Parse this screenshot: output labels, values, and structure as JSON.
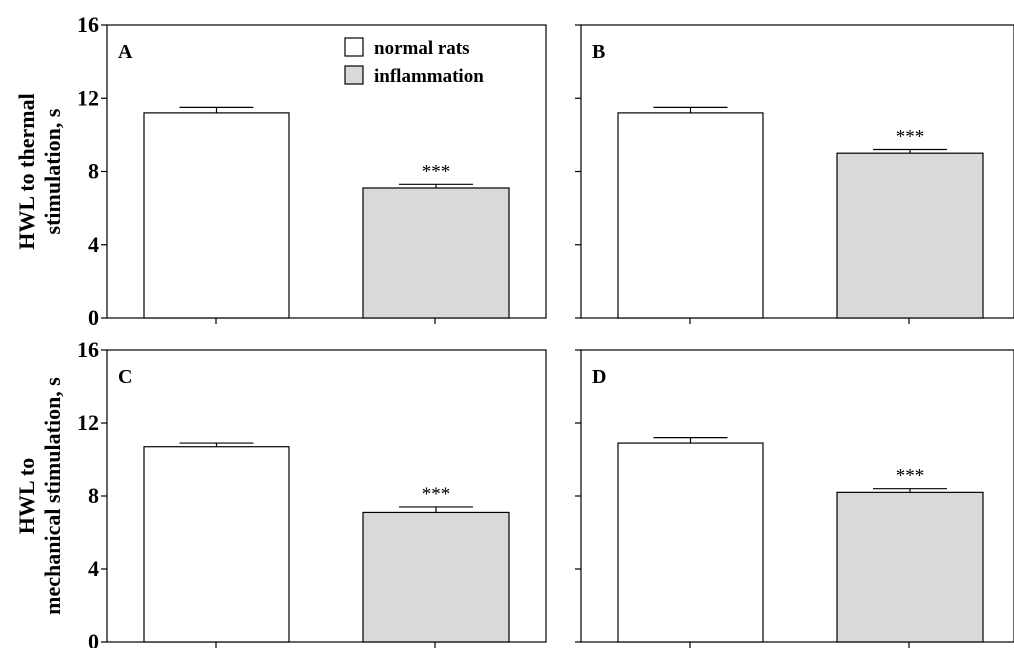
{
  "chart_data": [
    {
      "type": "bar",
      "panel": "A",
      "categories": [
        "normal rats",
        "inflammation"
      ],
      "values": [
        11.2,
        7.1
      ],
      "errors": [
        0.3,
        0.2
      ],
      "significance": [
        "",
        "***"
      ],
      "ylabel_lines": [
        "HWL to thermal",
        "stimulation, s"
      ],
      "ylim": [
        0,
        16
      ],
      "yticks": [
        "0",
        "4",
        "8",
        "12",
        "16"
      ]
    },
    {
      "type": "bar",
      "panel": "B",
      "categories": [
        "normal rats",
        "inflammation"
      ],
      "values": [
        11.2,
        9.0
      ],
      "errors": [
        0.3,
        0.2
      ],
      "significance": [
        "",
        "***"
      ],
      "ylim": [
        0,
        16
      ],
      "yticks": [
        "",
        "",
        "",
        "",
        ""
      ]
    },
    {
      "type": "bar",
      "panel": "C",
      "categories": [
        "normal rats",
        "inflammation"
      ],
      "values": [
        10.7,
        7.1
      ],
      "errors": [
        0.2,
        0.3
      ],
      "significance": [
        "",
        "***"
      ],
      "ylabel_lines": [
        "HWL to",
        "mechanical stimulation, s"
      ],
      "ylim": [
        0,
        16
      ],
      "yticks": [
        "0",
        "4",
        "8",
        "12",
        "16"
      ]
    },
    {
      "type": "bar",
      "panel": "D",
      "categories": [
        "normal rats",
        "inflammation"
      ],
      "values": [
        10.9,
        8.2
      ],
      "errors": [
        0.3,
        0.2
      ],
      "significance": [
        "",
        "***"
      ],
      "ylim": [
        0,
        16
      ],
      "yticks": [
        "",
        "",
        "",
        "",
        ""
      ]
    }
  ],
  "legend": {
    "position": "top-right of panel A",
    "items": [
      {
        "label": "normal rats",
        "color": "#ffffff"
      },
      {
        "label": "inflammation",
        "color": "#d9d9d9"
      }
    ]
  },
  "colors": {
    "normal rats": "#ffffff",
    "inflammation": "#d9d9d9"
  }
}
